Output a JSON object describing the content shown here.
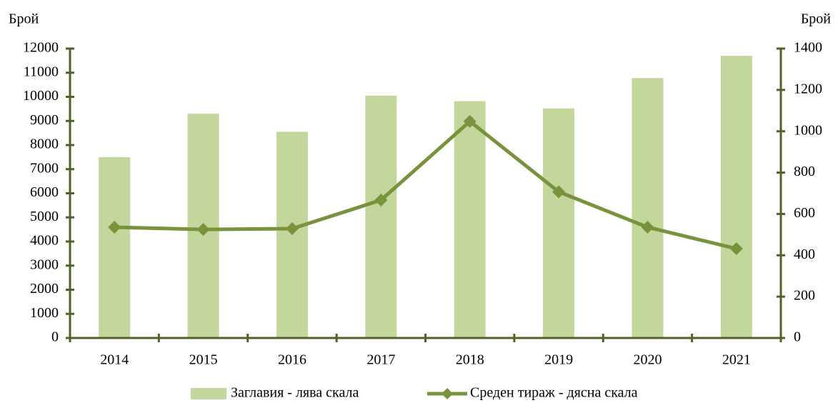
{
  "chart_data": {
    "type": "bar-line",
    "ylabel": "Брой",
    "y2label": "Брой",
    "categories": [
      "2014",
      "2015",
      "2016",
      "2017",
      "2018",
      "2019",
      "2020",
      "2021"
    ],
    "series": [
      {
        "name": "Заглавия - лява скала",
        "type": "bar",
        "color": "#c3d69b",
        "axis": "y",
        "values": [
          7500,
          9300,
          8550,
          10050,
          9820,
          9520,
          10780,
          11700
        ]
      },
      {
        "name": "Среден тираж - дясна скала",
        "type": "line",
        "color": "#77933c",
        "axis": "y2",
        "values": [
          536,
          525,
          529,
          667,
          1048,
          707,
          536,
          432
        ]
      }
    ],
    "ylim": [
      0,
      12000
    ],
    "yticks": [
      0,
      1000,
      2000,
      3000,
      4000,
      5000,
      6000,
      7000,
      8000,
      9000,
      10000,
      11000,
      12000
    ],
    "y2lim": [
      0,
      1400
    ],
    "y2ticks": [
      0,
      200,
      400,
      600,
      800,
      1000,
      1200,
      1400
    ],
    "grid": false,
    "legend": "bottom"
  }
}
